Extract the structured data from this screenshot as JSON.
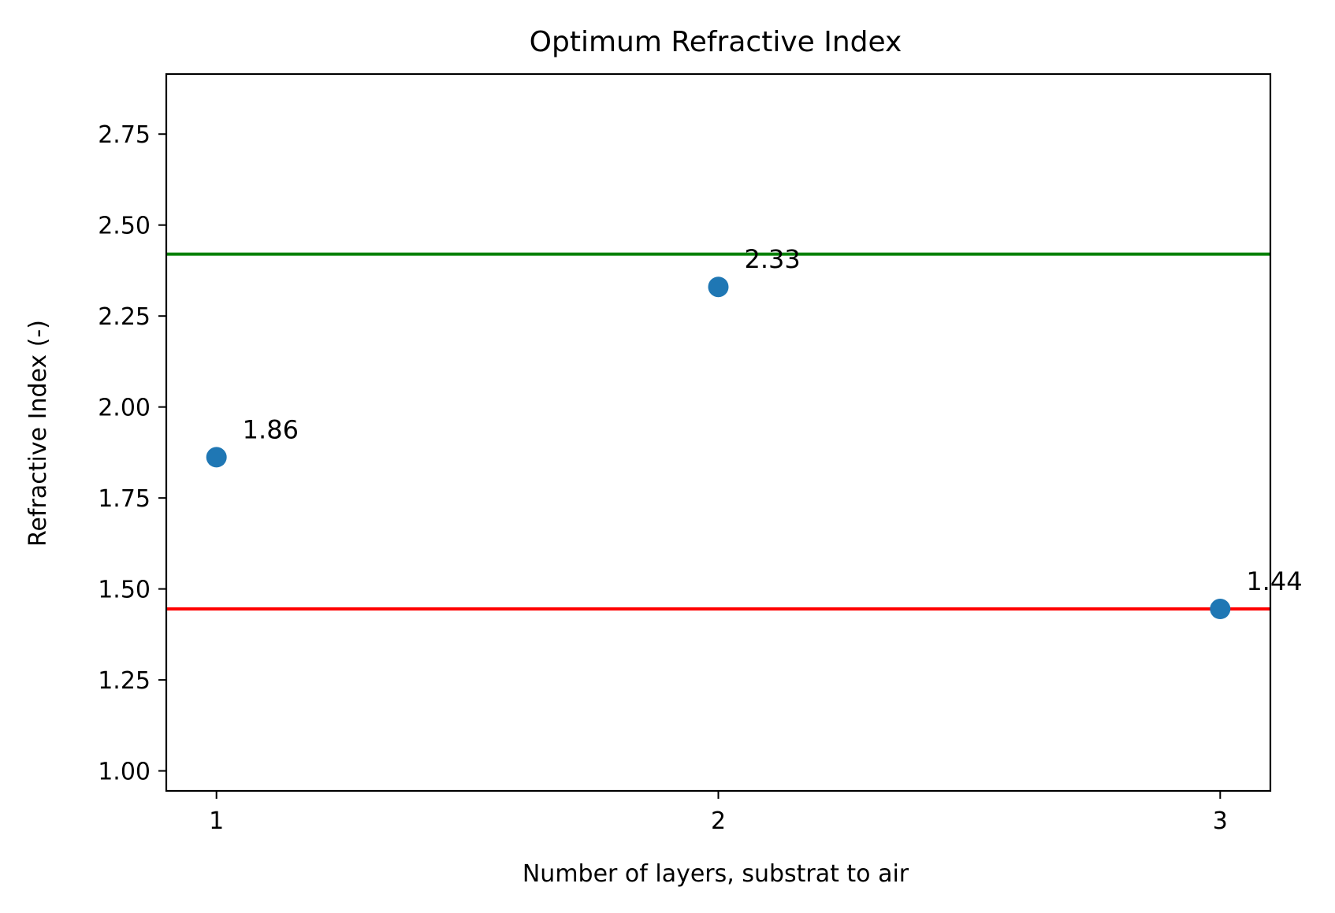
{
  "chart_data": {
    "type": "scatter",
    "title": "Optimum Refractive Index",
    "xlabel": "Number of layers, substrat to air",
    "ylabel": "Refractive Index (-)",
    "xlim": [
      0.9,
      3.1
    ],
    "ylim": [
      0.945,
      2.915
    ],
    "xticks": [
      1,
      2,
      3
    ],
    "xtick_labels": [
      "1",
      "2",
      "3"
    ],
    "yticks": [
      1.0,
      1.25,
      1.5,
      1.75,
      2.0,
      2.25,
      2.5,
      2.75
    ],
    "ytick_labels": [
      "1.00",
      "1.25",
      "1.50",
      "1.75",
      "2.00",
      "2.25",
      "2.50",
      "2.75"
    ],
    "grid": false,
    "series": [
      {
        "x": [
          1,
          2,
          3
        ],
        "y": [
          1.862,
          2.33,
          1.445
        ],
        "color": "#1f77b4"
      }
    ],
    "point_labels": [
      "1.86",
      "2.33",
      "1.44"
    ],
    "hlines": [
      {
        "y": 2.42,
        "color": "#008000"
      },
      {
        "y": 1.445,
        "color": "#ff0000"
      }
    ]
  }
}
